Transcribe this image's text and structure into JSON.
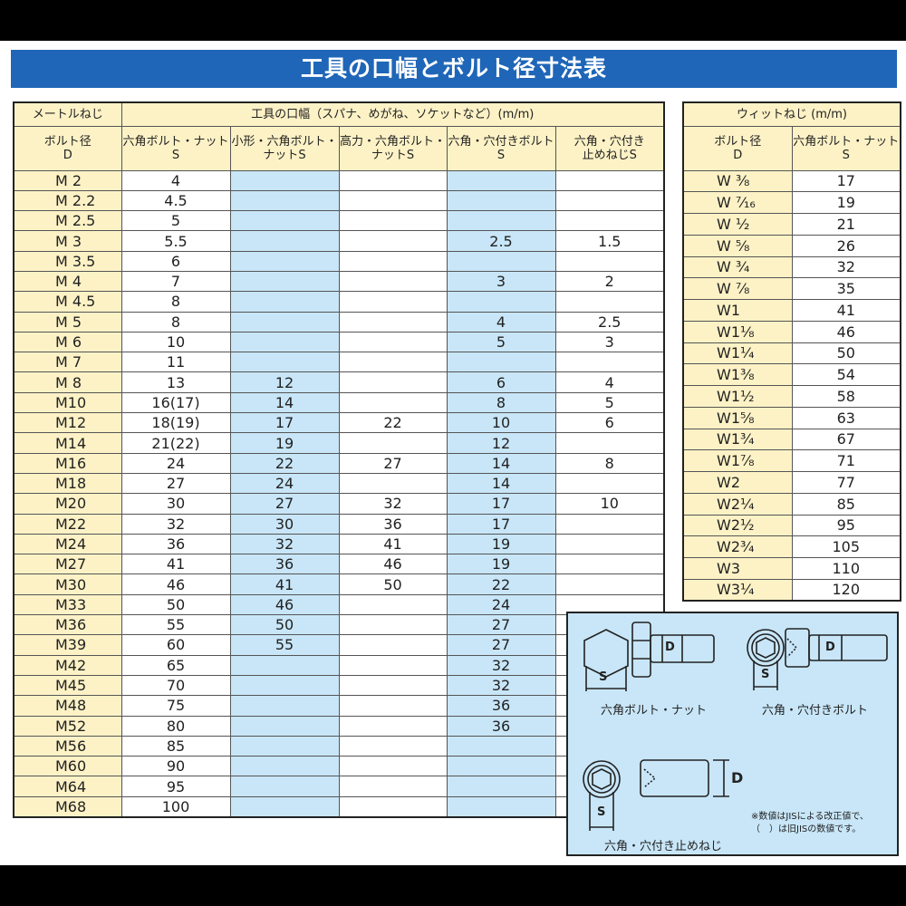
{
  "title": "工具の口幅とボルト径寸法表",
  "metric": {
    "group_label": "メートルねじ",
    "group_header": "工具の口幅（スパナ、めがね、ソケットなど）(m/m)",
    "columns": [
      "ボルト径\nD",
      "六角ボルト・ナット\nS",
      "小形・六角ボルト・\nナットS",
      "高力・六角ボルト・\nナットS",
      "六角・穴付きボルト\nS",
      "六角・穴付き\n止めねじS"
    ],
    "rows": [
      [
        "M 2",
        "4",
        "",
        "",
        "",
        ""
      ],
      [
        "M 2.2",
        "4.5",
        "",
        "",
        "",
        ""
      ],
      [
        "M 2.5",
        "5",
        "",
        "",
        "",
        ""
      ],
      [
        "M 3",
        "5.5",
        "",
        "",
        "2.5",
        "1.5"
      ],
      [
        "M 3.5",
        "6",
        "",
        "",
        "",
        ""
      ],
      [
        "M 4",
        "7",
        "",
        "",
        "3",
        "2"
      ],
      [
        "M 4.5",
        "8",
        "",
        "",
        "",
        ""
      ],
      [
        "M 5",
        "8",
        "",
        "",
        "4",
        "2.5"
      ],
      [
        "M 6",
        "10",
        "",
        "",
        "5",
        "3"
      ],
      [
        "M 7",
        "11",
        "",
        "",
        "",
        ""
      ],
      [
        "M 8",
        "13",
        "12",
        "",
        "6",
        "4"
      ],
      [
        "M10",
        "16(17)",
        "14",
        "",
        "8",
        "5"
      ],
      [
        "M12",
        "18(19)",
        "17",
        "22",
        "10",
        "6"
      ],
      [
        "M14",
        "21(22)",
        "19",
        "",
        "12",
        ""
      ],
      [
        "M16",
        "24",
        "22",
        "27",
        "14",
        "8"
      ],
      [
        "M18",
        "27",
        "24",
        "",
        "14",
        ""
      ],
      [
        "M20",
        "30",
        "27",
        "32",
        "17",
        "10"
      ],
      [
        "M22",
        "32",
        "30",
        "36",
        "17",
        ""
      ],
      [
        "M24",
        "36",
        "32",
        "41",
        "19",
        ""
      ],
      [
        "M27",
        "41",
        "36",
        "46",
        "19",
        ""
      ],
      [
        "M30",
        "46",
        "41",
        "50",
        "22",
        ""
      ],
      [
        "M33",
        "50",
        "46",
        "",
        "24",
        ""
      ],
      [
        "M36",
        "55",
        "50",
        "",
        "27",
        ""
      ],
      [
        "M39",
        "60",
        "55",
        "",
        "27",
        ""
      ],
      [
        "M42",
        "65",
        "",
        "",
        "32",
        ""
      ],
      [
        "M45",
        "70",
        "",
        "",
        "32",
        ""
      ],
      [
        "M48",
        "75",
        "",
        "",
        "36",
        ""
      ],
      [
        "M52",
        "80",
        "",
        "",
        "36",
        ""
      ],
      [
        "M56",
        "85",
        "",
        "",
        "",
        ""
      ],
      [
        "M60",
        "90",
        "",
        "",
        "",
        ""
      ],
      [
        "M64",
        "95",
        "",
        "",
        "",
        ""
      ],
      [
        "M68",
        "100",
        "",
        "",
        "",
        ""
      ]
    ]
  },
  "whitworth": {
    "group_header": "ウィットねじ (m/m)",
    "columns": [
      "ボルト径\nD",
      "六角ボルト・ナット\nS"
    ],
    "rows": [
      [
        "W ³⁄₈",
        "17"
      ],
      [
        "W ⁷⁄₁₆",
        "19"
      ],
      [
        "W ¹⁄₂",
        "21"
      ],
      [
        "W ⁵⁄₈",
        "26"
      ],
      [
        "W ³⁄₄",
        "32"
      ],
      [
        "W ⁷⁄₈",
        "35"
      ],
      [
        "W1",
        "41"
      ],
      [
        "W1¹⁄₈",
        "46"
      ],
      [
        "W1¹⁄₄",
        "50"
      ],
      [
        "W1³⁄₈",
        "54"
      ],
      [
        "W1¹⁄₂",
        "58"
      ],
      [
        "W1⁵⁄₈",
        "63"
      ],
      [
        "W1³⁄₄",
        "67"
      ],
      [
        "W1⁷⁄₈",
        "71"
      ],
      [
        "W2",
        "77"
      ],
      [
        "W2¹⁄₄",
        "85"
      ],
      [
        "W2¹⁄₂",
        "95"
      ],
      [
        "W2³⁄₄",
        "105"
      ],
      [
        "W3",
        "110"
      ],
      [
        "W3¹⁄₄",
        "120"
      ]
    ]
  },
  "diagram": {
    "captions": [
      "六角ボルト・ナット",
      "六角・穴付きボルト",
      "六角・穴付き止めねじ"
    ],
    "labels": {
      "s": "S",
      "d": "D"
    },
    "note": [
      "※数値はJISによる改正値で、",
      "（　）は旧JISの数値です。"
    ]
  },
  "colors": {
    "title_bg": "#1f66b8",
    "header_bg": "#fdf2c6",
    "blue_col": "#c8e6f8"
  }
}
